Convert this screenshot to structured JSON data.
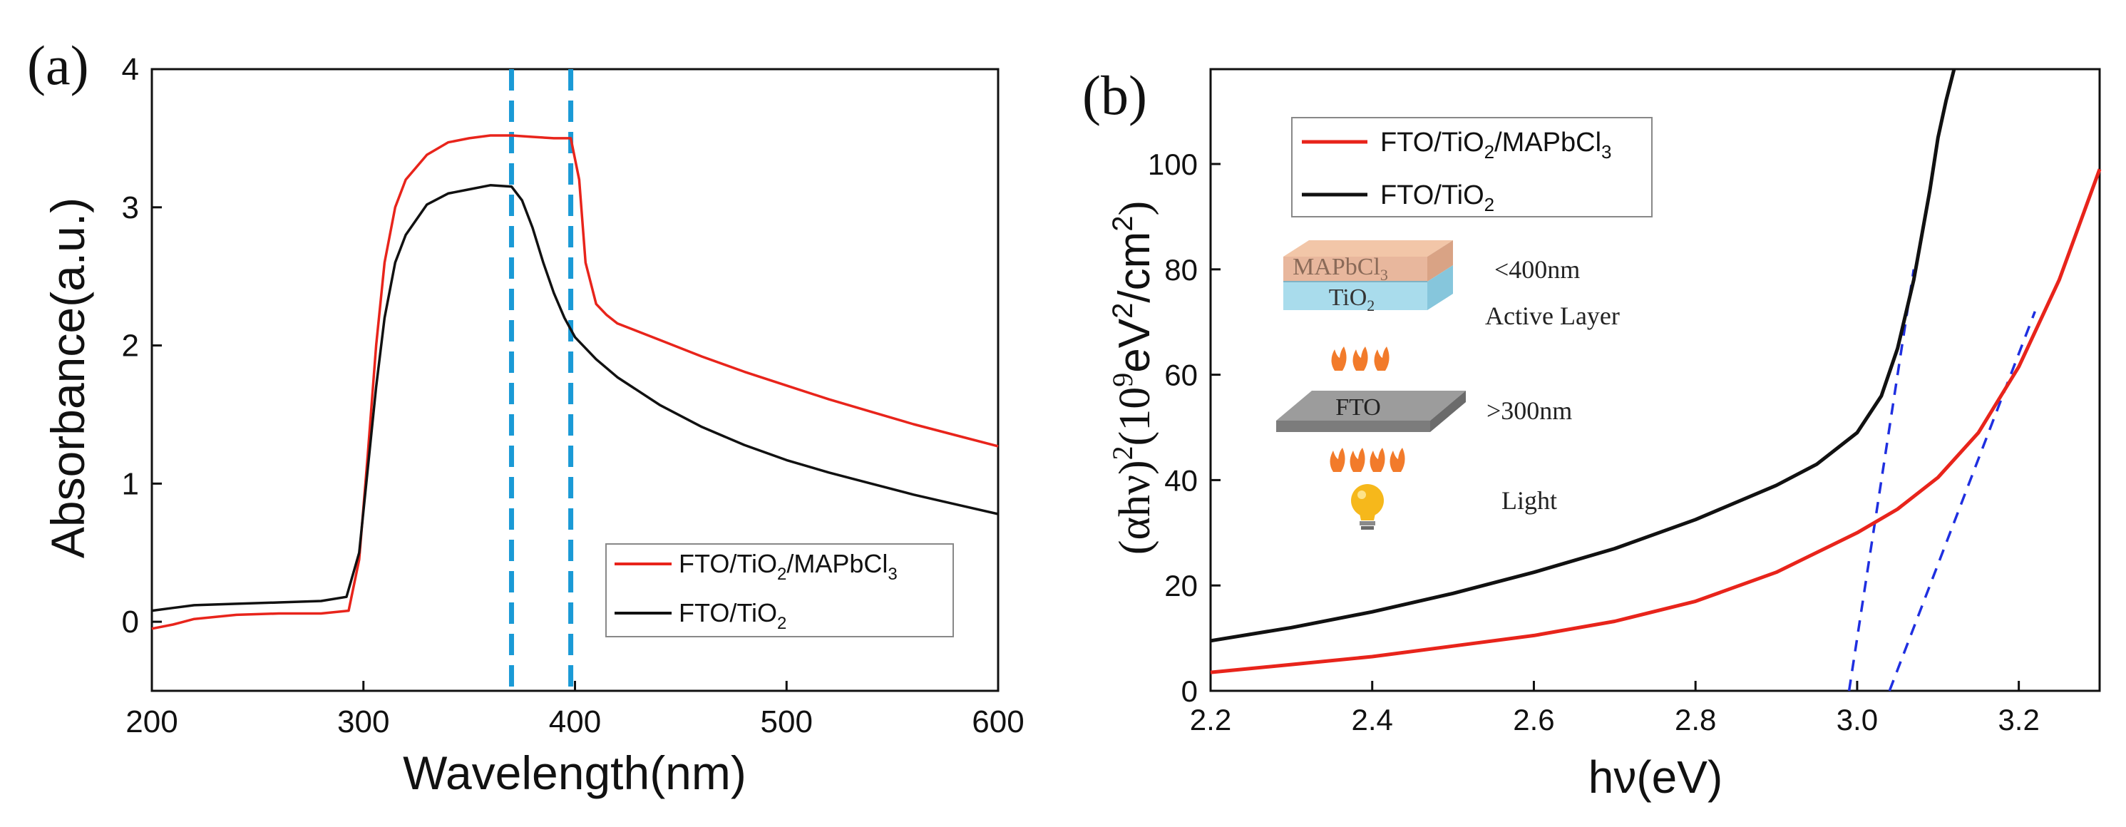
{
  "chart_data": [
    {
      "panel": "(a)",
      "type": "line",
      "xlabel": "Wavelength(nm)",
      "ylabel": "Absorbance(a.u.)",
      "xlim": [
        200,
        600
      ],
      "ylim": [
        -0.5,
        4
      ],
      "xticks": [
        "200",
        "300",
        "400",
        "500",
        "600"
      ],
      "yticks": [
        "0",
        "1",
        "2",
        "3",
        "4"
      ],
      "legend_position": "bottom-right",
      "series": [
        {
          "name_parts": [
            "FTO/TiO",
            "2",
            "/MAPbCl",
            "3"
          ],
          "color": "#e8241b",
          "x": [
            200,
            210,
            220,
            240,
            260,
            280,
            293,
            298,
            302,
            306,
            310,
            315,
            320,
            330,
            340,
            350,
            360,
            370,
            380,
            390,
            398,
            402,
            405,
            410,
            415,
            420,
            440,
            460,
            480,
            500,
            520,
            540,
            560,
            580,
            600
          ],
          "y": [
            -0.05,
            -0.02,
            0.02,
            0.05,
            0.06,
            0.06,
            0.08,
            0.45,
            1.2,
            2.0,
            2.6,
            3.0,
            3.2,
            3.38,
            3.47,
            3.5,
            3.52,
            3.52,
            3.51,
            3.5,
            3.5,
            3.2,
            2.6,
            2.3,
            2.22,
            2.16,
            2.04,
            1.92,
            1.81,
            1.71,
            1.61,
            1.52,
            1.43,
            1.35,
            1.27
          ]
        },
        {
          "name_parts": [
            "FTO/TiO",
            "2"
          ],
          "color": "#111111",
          "x": [
            200,
            210,
            220,
            240,
            260,
            280,
            292,
            298,
            302,
            306,
            310,
            315,
            320,
            330,
            340,
            350,
            360,
            370,
            375,
            380,
            385,
            390,
            395,
            400,
            410,
            420,
            440,
            460,
            480,
            500,
            520,
            540,
            560,
            580,
            600
          ],
          "y": [
            0.08,
            0.1,
            0.12,
            0.13,
            0.14,
            0.15,
            0.18,
            0.5,
            1.1,
            1.7,
            2.2,
            2.6,
            2.8,
            3.02,
            3.1,
            3.13,
            3.16,
            3.15,
            3.05,
            2.85,
            2.6,
            2.38,
            2.2,
            2.06,
            1.9,
            1.77,
            1.57,
            1.41,
            1.28,
            1.17,
            1.08,
            1.0,
            0.92,
            0.85,
            0.78
          ]
        }
      ],
      "vlines": [
        {
          "x": 370,
          "color": "#1a9ad6",
          "style": "dashed"
        },
        {
          "x": 398,
          "color": "#1a9ad6",
          "style": "dashed"
        }
      ]
    },
    {
      "panel": "(b)",
      "type": "line",
      "xlabel": "hν(eV)",
      "ylabel_parts": [
        "(αhν)",
        "2",
        "(10",
        "9",
        "eV",
        "2",
        "/cm",
        "2",
        ")"
      ],
      "xlim": [
        2.2,
        3.3
      ],
      "ylim": [
        0,
        118
      ],
      "xticks": [
        "2.2",
        "2.4",
        "2.6",
        "2.8",
        "3.0",
        "3.2"
      ],
      "yticks": [
        "0",
        "20",
        "40",
        "60",
        "80",
        "100"
      ],
      "legend_position": "top-left",
      "series": [
        {
          "name_parts": [
            "FTO/TiO",
            "2",
            "/MAPbCl",
            "3"
          ],
          "color": "#e8241b",
          "x": [
            2.2,
            2.3,
            2.4,
            2.5,
            2.6,
            2.7,
            2.8,
            2.9,
            3.0,
            3.05,
            3.1,
            3.15,
            3.2,
            3.25,
            3.3
          ],
          "y": [
            3.5,
            5.0,
            6.5,
            8.5,
            10.5,
            13.2,
            17.0,
            22.5,
            30.0,
            34.5,
            40.5,
            49.0,
            61.5,
            78.0,
            99.0
          ]
        },
        {
          "name_parts": [
            "FTO/TiO",
            "2"
          ],
          "color": "#111111",
          "x": [
            2.2,
            2.3,
            2.4,
            2.5,
            2.6,
            2.7,
            2.8,
            2.9,
            2.95,
            3.0,
            3.03,
            3.05,
            3.07,
            3.09,
            3.1,
            3.11,
            3.12
          ],
          "y": [
            9.5,
            12.0,
            15.0,
            18.5,
            22.5,
            27.0,
            32.5,
            39.0,
            43.0,
            49.0,
            56.0,
            65.0,
            78.0,
            95.0,
            105.0,
            112.0,
            118.0
          ]
        }
      ],
      "fit_lines": [
        {
          "color": "#1f2fe0",
          "style": "dashed",
          "x": [
            2.99,
            3.07
          ],
          "y": [
            0,
            80
          ]
        },
        {
          "color": "#1f2fe0",
          "style": "dashed",
          "x": [
            3.04,
            3.22
          ],
          "y": [
            0,
            72
          ]
        }
      ],
      "inset": {
        "labels": {
          "mapbcl3_parts": [
            "MAPbCl",
            "3"
          ],
          "tio2_parts": [
            "TiO",
            "2"
          ],
          "fto": "FTO",
          "lt400": "<400nm",
          "active_layer": "Active Layer",
          "gt300": ">300nm",
          "light": "Light"
        }
      }
    }
  ]
}
